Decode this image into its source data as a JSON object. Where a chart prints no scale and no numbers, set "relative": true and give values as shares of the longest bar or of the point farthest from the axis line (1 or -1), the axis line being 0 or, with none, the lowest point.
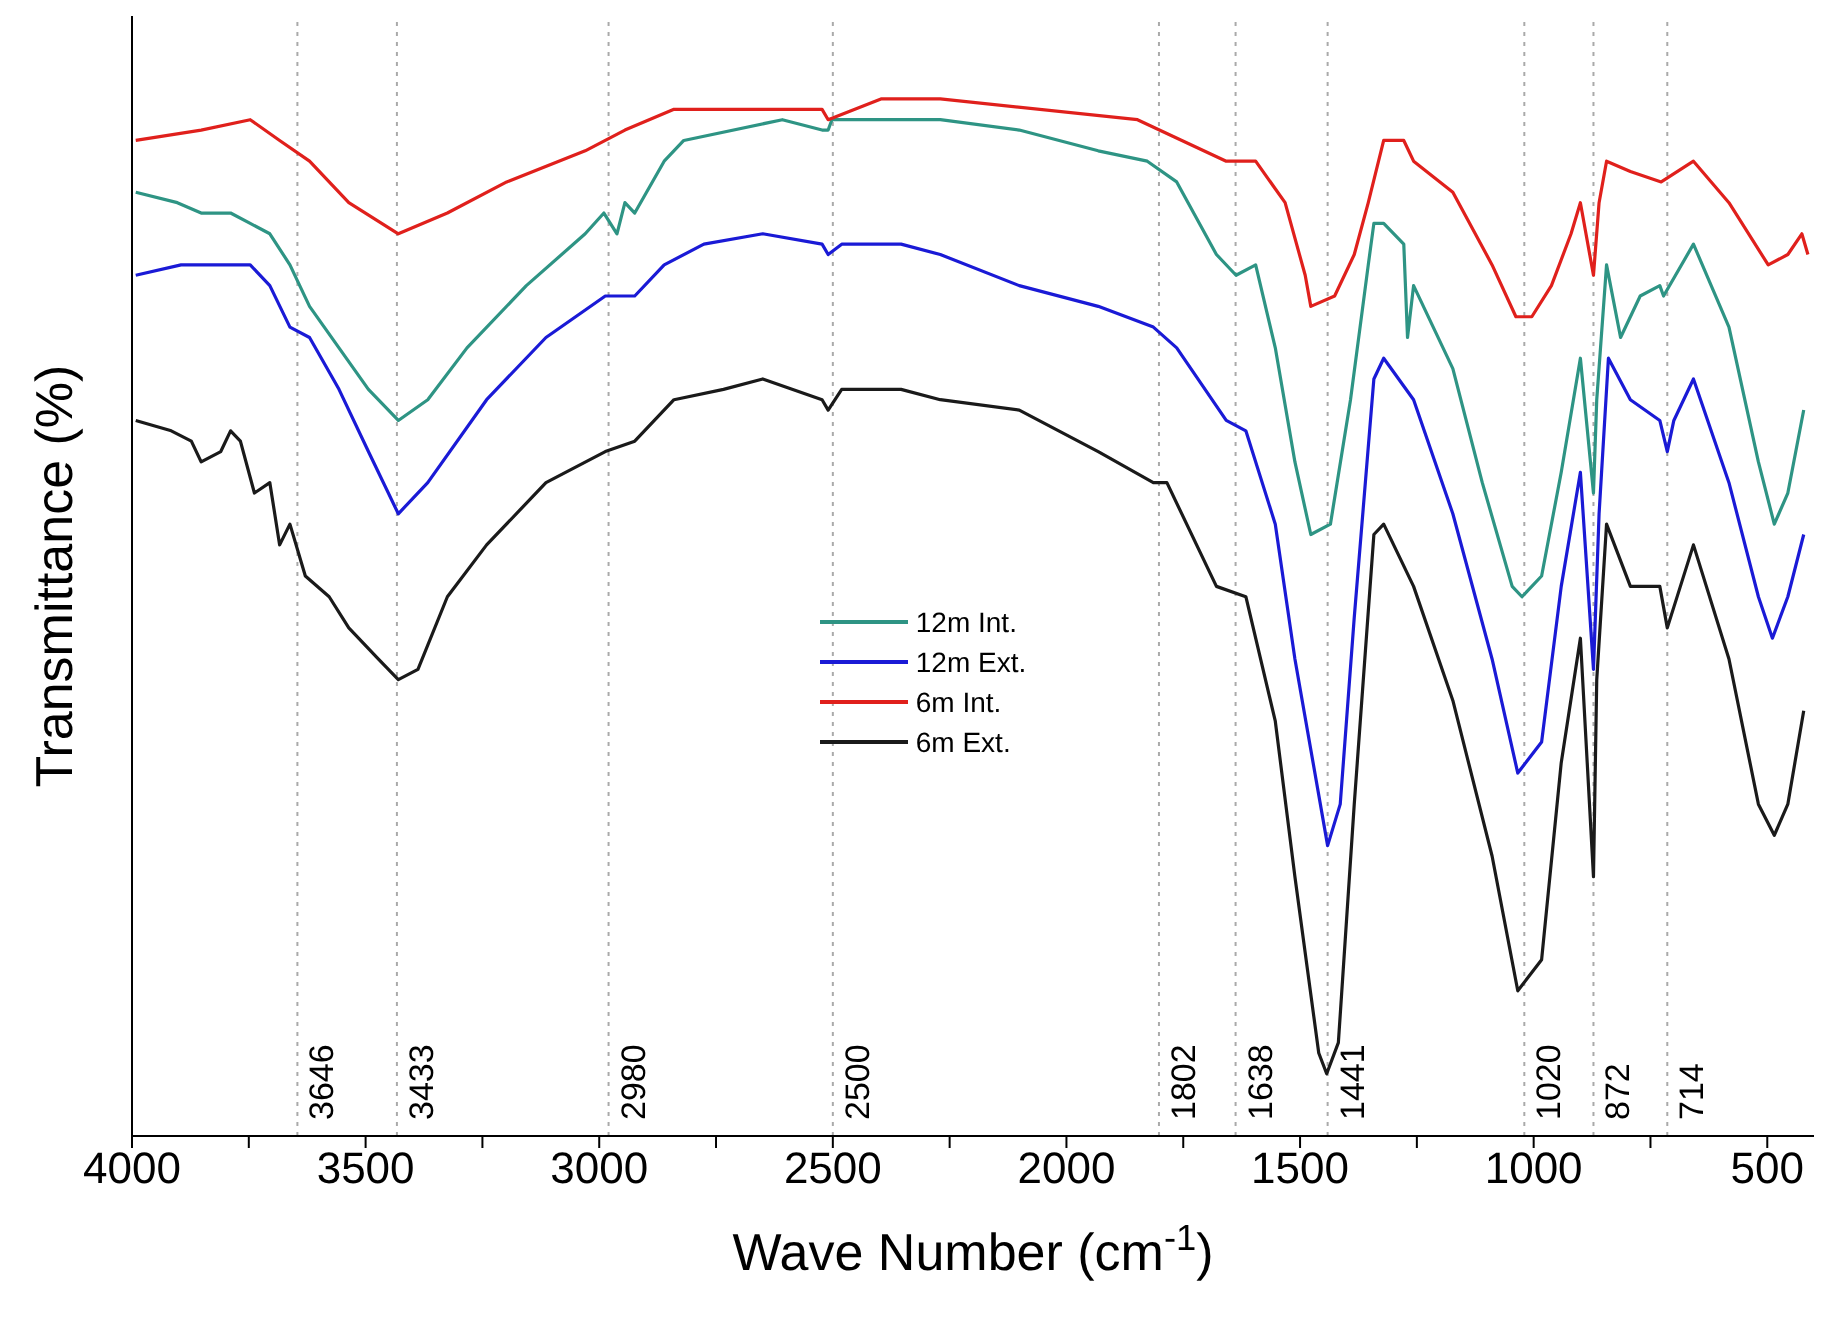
{
  "chart_data": {
    "type": "line",
    "relative": true,
    "xlabel": "Wave Number (cm$^{-1}$)",
    "ylabel": "Transmittance (%)",
    "xlim": [
      4000,
      400
    ],
    "xticks": [
      4000,
      {
        "value": 3750,
        "label": null
      },
      3500,
      {
        "value": 3250,
        "label": null
      },
      3000,
      {
        "value": 2750,
        "label": null
      },
      2500,
      {
        "value": 2250,
        "label": null
      },
      2000,
      {
        "value": 1750,
        "label": null
      },
      1500,
      {
        "value": 1250,
        "label": null
      },
      1000,
      {
        "value": 750,
        "label": null
      },
      500
    ],
    "grid": false,
    "legend": "center",
    "marker": "none",
    "line_style": "solid",
    "ref_lines": [
      {
        "axis": "x",
        "value": 3646,
        "label": "3646",
        "line_style": "dotted",
        "color": "#aaaaaa"
      },
      {
        "axis": "x",
        "value": 3433,
        "label": "3433",
        "line_style": "dotted",
        "color": "#aaaaaa"
      },
      {
        "axis": "x",
        "value": 2980,
        "label": "2980",
        "line_style": "dotted",
        "color": "#aaaaaa"
      },
      {
        "axis": "x",
        "value": 2500,
        "label": "2500",
        "line_style": "dotted",
        "color": "#aaaaaa"
      },
      {
        "axis": "x",
        "value": 1802,
        "label": "1802",
        "line_style": "dotted",
        "color": "#aaaaaa"
      },
      {
        "axis": "x",
        "value": 1638,
        "label": "1638",
        "line_style": "dotted",
        "color": "#aaaaaa"
      },
      {
        "axis": "x",
        "value": 1441,
        "label": "1441",
        "line_style": "dotted",
        "color": "#aaaaaa"
      },
      {
        "axis": "x",
        "value": 1020,
        "label": "1020",
        "line_style": "dotted",
        "color": "#aaaaaa"
      },
      {
        "axis": "x",
        "value": 872,
        "label": "872",
        "line_style": "dotted",
        "color": "#aaaaaa"
      },
      {
        "axis": "x",
        "value": 714,
        "label": "714",
        "line_style": "dotted",
        "color": "#aaaaaa"
      }
    ],
    "series": [
      {
        "name": "12m Int.",
        "color": "#2e9484",
        "x": [
          3992,
          3903,
          3852,
          3789,
          3747,
          3705,
          3662,
          3620,
          3557,
          3494,
          3430,
          3367,
          3283,
          3156,
          3030,
          2990,
          2962,
          2945,
          2924,
          2861,
          2819,
          2608,
          2523,
          2510,
          2502,
          2270,
          2101,
          1932,
          1827,
          1764,
          1679,
          1637,
          1595,
          1553,
          1511,
          1477,
          1435,
          1392,
          1354,
          1342,
          1321,
          1278,
          1270,
          1257,
          1173,
          1110,
          1046,
          1025,
          983,
          941,
          900,
          872,
          865,
          844,
          814,
          772,
          730,
          722,
          658,
          582,
          519,
          485,
          456,
          422
        ],
        "values": [
          0.91,
          0.9,
          0.89,
          0.89,
          0.88,
          0.87,
          0.84,
          0.8,
          0.76,
          0.72,
          0.69,
          0.71,
          0.76,
          0.82,
          0.87,
          0.89,
          0.87,
          0.9,
          0.89,
          0.94,
          0.96,
          0.98,
          0.97,
          0.97,
          0.98,
          0.98,
          0.97,
          0.95,
          0.94,
          0.92,
          0.85,
          0.83,
          0.84,
          0.76,
          0.65,
          0.58,
          0.59,
          0.71,
          0.84,
          0.88,
          0.88,
          0.86,
          0.77,
          0.82,
          0.74,
          0.63,
          0.53,
          0.52,
          0.54,
          0.64,
          0.75,
          0.62,
          0.71,
          0.84,
          0.77,
          0.81,
          0.82,
          0.81,
          0.86,
          0.78,
          0.65,
          0.59,
          0.62,
          0.7
        ]
      },
      {
        "name": "12m Ext.",
        "color": "#1a1ad6",
        "x": [
          3992,
          3895,
          3789,
          3747,
          3705,
          3662,
          3620,
          3557,
          3494,
          3430,
          3367,
          3241,
          3114,
          2987,
          2924,
          2861,
          2776,
          2650,
          2523,
          2510,
          2481,
          2354,
          2270,
          2101,
          1932,
          1814,
          1764,
          1658,
          1616,
          1553,
          1511,
          1441,
          1414,
          1384,
          1342,
          1321,
          1257,
          1173,
          1089,
          1034,
          983,
          941,
          900,
          872,
          860,
          840,
          793,
          730,
          714,
          700,
          658,
          582,
          519,
          489,
          456,
          422
        ],
        "values": [
          0.83,
          0.84,
          0.84,
          0.84,
          0.82,
          0.78,
          0.77,
          0.72,
          0.66,
          0.6,
          0.63,
          0.71,
          0.77,
          0.81,
          0.81,
          0.84,
          0.86,
          0.87,
          0.86,
          0.85,
          0.86,
          0.86,
          0.85,
          0.82,
          0.8,
          0.78,
          0.76,
          0.69,
          0.68,
          0.59,
          0.46,
          0.28,
          0.32,
          0.5,
          0.73,
          0.75,
          0.71,
          0.6,
          0.46,
          0.35,
          0.38,
          0.53,
          0.64,
          0.45,
          0.6,
          0.75,
          0.71,
          0.69,
          0.66,
          0.69,
          0.73,
          0.63,
          0.52,
          0.48,
          0.52,
          0.58
        ]
      },
      {
        "name": "6m Int.",
        "color": "#e0201c",
        "x": [
          3992,
          3852,
          3747,
          3684,
          3620,
          3536,
          3430,
          3325,
          3198,
          3030,
          2945,
          2840,
          2608,
          2523,
          2510,
          2397,
          2270,
          1848,
          1658,
          1595,
          1532,
          1489,
          1477,
          1426,
          1384,
          1354,
          1321,
          1278,
          1257,
          1173,
          1089,
          1038,
          1004,
          962,
          920,
          900,
          872,
          860,
          844,
          793,
          727,
          658,
          582,
          498,
          456,
          426,
          413
        ],
        "values": [
          0.96,
          0.97,
          0.98,
          0.96,
          0.94,
          0.9,
          0.87,
          0.89,
          0.92,
          0.95,
          0.97,
          0.99,
          0.99,
          0.99,
          0.98,
          1.0,
          1.0,
          0.98,
          0.94,
          0.94,
          0.9,
          0.83,
          0.8,
          0.81,
          0.85,
          0.9,
          0.96,
          0.96,
          0.94,
          0.91,
          0.84,
          0.79,
          0.79,
          0.82,
          0.87,
          0.9,
          0.83,
          0.9,
          0.94,
          0.93,
          0.92,
          0.94,
          0.9,
          0.84,
          0.85,
          0.87,
          0.85
        ]
      },
      {
        "name": "6m Ext.",
        "color": "#1a1a1a",
        "x": [
          3992,
          3916,
          3873,
          3852,
          3810,
          3789,
          3768,
          3738,
          3705,
          3684,
          3662,
          3629,
          3578,
          3536,
          3473,
          3430,
          3388,
          3325,
          3241,
          3114,
          2987,
          2924,
          2840,
          2734,
          2650,
          2523,
          2510,
          2481,
          2354,
          2270,
          2101,
          1932,
          1814,
          1785,
          1679,
          1616,
          1553,
          1511,
          1460,
          1443,
          1418,
          1384,
          1342,
          1321,
          1257,
          1173,
          1089,
          1034,
          983,
          941,
          900,
          872,
          865,
          844,
          793,
          730,
          714,
          700,
          658,
          582,
          519,
          485,
          456,
          422
        ],
        "values": [
          0.69,
          0.68,
          0.67,
          0.65,
          0.66,
          0.68,
          0.67,
          0.62,
          0.63,
          0.57,
          0.59,
          0.54,
          0.52,
          0.49,
          0.46,
          0.44,
          0.45,
          0.52,
          0.57,
          0.63,
          0.66,
          0.67,
          0.71,
          0.72,
          0.73,
          0.71,
          0.7,
          0.72,
          0.72,
          0.71,
          0.7,
          0.66,
          0.63,
          0.63,
          0.53,
          0.52,
          0.4,
          0.25,
          0.08,
          0.06,
          0.09,
          0.32,
          0.58,
          0.59,
          0.53,
          0.42,
          0.27,
          0.14,
          0.17,
          0.36,
          0.48,
          0.25,
          0.44,
          0.59,
          0.53,
          0.53,
          0.49,
          0.51,
          0.57,
          0.46,
          0.32,
          0.29,
          0.32,
          0.41
        ]
      }
    ]
  }
}
